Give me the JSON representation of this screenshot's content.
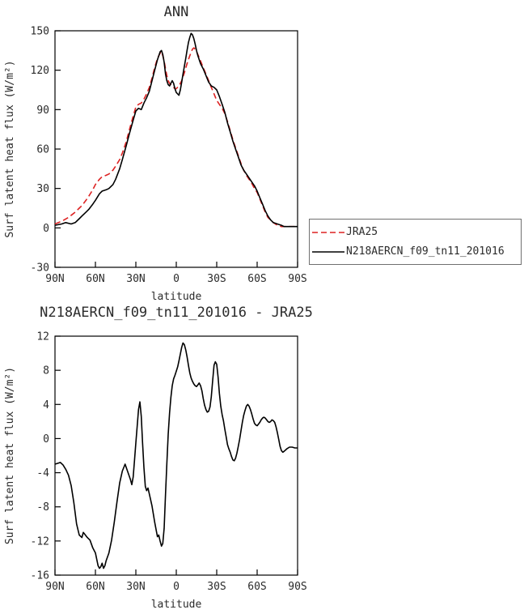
{
  "chart_data": [
    {
      "type": "line",
      "title": "ANN",
      "xlabel": "latitude",
      "ylabel": "Surf latent heat flux (W/m²)",
      "x_axis": {
        "min": 90,
        "max": -90,
        "ticks": [
          {
            "v": 90,
            "label": "90N"
          },
          {
            "v": 60,
            "label": "60N"
          },
          {
            "v": 30,
            "label": "30N"
          },
          {
            "v": 0,
            "label": "0"
          },
          {
            "v": -30,
            "label": "30S"
          },
          {
            "v": -60,
            "label": "60S"
          },
          {
            "v": -90,
            "label": "90S"
          }
        ]
      },
      "y_axis": {
        "min": -30,
        "max": 150,
        "ticks": [
          -30,
          0,
          30,
          60,
          90,
          120,
          150
        ]
      },
      "legend_position": "outside-right-bottom",
      "grid": false,
      "series": [
        {
          "name": "JRA25",
          "color": "#dd2222",
          "dash": "7,4",
          "width": 1.6,
          "x": [
            90,
            85,
            80,
            75,
            72,
            70,
            67,
            65,
            62,
            60,
            57,
            55,
            52,
            50,
            47,
            45,
            42,
            40,
            37,
            35,
            32,
            30,
            28,
            26,
            24,
            22,
            20,
            18,
            16,
            14,
            12,
            11,
            10,
            9,
            8,
            7,
            6,
            5,
            4,
            3,
            2,
            1,
            0,
            -2,
            -4,
            -6,
            -8,
            -10,
            -12,
            -13,
            -14,
            -16,
            -18,
            -20,
            -22,
            -24,
            -26,
            -28,
            -30,
            -32,
            -34,
            -36,
            -38,
            -40,
            -42,
            -44,
            -46,
            -48,
            -50,
            -52,
            -54,
            -56,
            -58,
            -60,
            -62,
            -64,
            -66,
            -68,
            -70,
            -72,
            -75,
            -78,
            -80,
            -85,
            -90
          ],
          "y": [
            3,
            5,
            8,
            12,
            15,
            17,
            21,
            24,
            29,
            33,
            37,
            39,
            40,
            41,
            44,
            47,
            52,
            57,
            66,
            74,
            85,
            92,
            94,
            95,
            98,
            102,
            107,
            114,
            122,
            129,
            133,
            134,
            131,
            127,
            121,
            116,
            112,
            110,
            109,
            108,
            107,
            106,
            106,
            108,
            112,
            118,
            125,
            131,
            136,
            137,
            136,
            132,
            127,
            122,
            117,
            112,
            107,
            102,
            97,
            94,
            91,
            87,
            81,
            74,
            67,
            61,
            55,
            49,
            44,
            40,
            37,
            34,
            30,
            27,
            22,
            17,
            12,
            8,
            6,
            4,
            2,
            1,
            1,
            1,
            1
          ]
        },
        {
          "name": "N218AERCN_f09_tn11_201016",
          "color": "#000000",
          "dash": "",
          "width": 1.6,
          "x": [
            90,
            85,
            82,
            78,
            75,
            72,
            70,
            67,
            65,
            62,
            60,
            57,
            55,
            52,
            50,
            47,
            45,
            42,
            40,
            37,
            35,
            32,
            30,
            28,
            26,
            24,
            22,
            20,
            18,
            16,
            14,
            12,
            11,
            10,
            9,
            8,
            7,
            6,
            5,
            4,
            3,
            2,
            1,
            0,
            -1,
            -2,
            -3,
            -4,
            -5,
            -6,
            -7,
            -8,
            -9,
            -10,
            -11,
            -12,
            -13,
            -14,
            -15,
            -16,
            -18,
            -20,
            -22,
            -24,
            -26,
            -28,
            -30,
            -32,
            -34,
            -36,
            -38,
            -40,
            -42,
            -44,
            -46,
            -48,
            -50,
            -52,
            -54,
            -56,
            -58,
            -60,
            -62,
            -64,
            -66,
            -68,
            -70,
            -72,
            -75,
            -78,
            -80,
            -85,
            -90
          ],
          "y": [
            2,
            3,
            4,
            3,
            4,
            7,
            9,
            12,
            14,
            18,
            21,
            26,
            28,
            29,
            30,
            33,
            37,
            45,
            52,
            63,
            71,
            82,
            89,
            91,
            90,
            95,
            99,
            104,
            112,
            120,
            128,
            134,
            135,
            132,
            126,
            117,
            112,
            109,
            108,
            110,
            112,
            110,
            106,
            103,
            102,
            101,
            105,
            111,
            117,
            123,
            129,
            135,
            141,
            145,
            148,
            147,
            144,
            140,
            135,
            131,
            125,
            121,
            116,
            111,
            108,
            107,
            105,
            100,
            94,
            88,
            80,
            73,
            66,
            60,
            54,
            48,
            44,
            41,
            38,
            35,
            32,
            28,
            23,
            18,
            13,
            9,
            6,
            4,
            3,
            2,
            1,
            1,
            1
          ]
        }
      ]
    },
    {
      "type": "line",
      "title": "N218AERCN_f09_tn11_201016 - JRA25",
      "xlabel": "latitude",
      "ylabel": "Surf latent heat flux (W/m²)",
      "x_axis": {
        "min": 90,
        "max": -90,
        "ticks": [
          {
            "v": 90,
            "label": "90N"
          },
          {
            "v": 60,
            "label": "60N"
          },
          {
            "v": 30,
            "label": "30N"
          },
          {
            "v": 0,
            "label": "0"
          },
          {
            "v": -30,
            "label": "30S"
          },
          {
            "v": -60,
            "label": "60S"
          },
          {
            "v": -90,
            "label": "90S"
          }
        ]
      },
      "y_axis": {
        "min": -16,
        "max": 12,
        "ticks": [
          -16,
          -12,
          -8,
          -4,
          0,
          4,
          8,
          12
        ]
      },
      "grid": false,
      "series": [
        {
          "name": "N218AERCN_f09_tn11_201016 - JRA25",
          "color": "#000000",
          "dash": "",
          "width": 1.6,
          "x": [
            90,
            88,
            86,
            84,
            82,
            80,
            78,
            76,
            74,
            72,
            70,
            69,
            68,
            66,
            64,
            62,
            60,
            58,
            57,
            56,
            55,
            54,
            53,
            52,
            50,
            48,
            46,
            44,
            42,
            40,
            38,
            36,
            34,
            33,
            32,
            31,
            30,
            29,
            28,
            27,
            26,
            25,
            24,
            23,
            22,
            21,
            20,
            18,
            16,
            14,
            13,
            12,
            11,
            10,
            9,
            8,
            7,
            6,
            5,
            4,
            3,
            2,
            1,
            0,
            -1,
            -2,
            -3,
            -4,
            -5,
            -6,
            -7,
            -8,
            -9,
            -10,
            -11,
            -12,
            -13,
            -14,
            -15,
            -16,
            -17,
            -18,
            -19,
            -20,
            -21,
            -22,
            -23,
            -24,
            -25,
            -26,
            -27,
            -28,
            -29,
            -30,
            -31,
            -32,
            -33,
            -34,
            -35,
            -36,
            -37,
            -38,
            -39,
            -40,
            -41,
            -42,
            -43,
            -44,
            -45,
            -46,
            -47,
            -48,
            -49,
            -50,
            -51,
            -52,
            -53,
            -54,
            -55,
            -56,
            -57,
            -58,
            -59,
            -60,
            -61,
            -62,
            -63,
            -64,
            -65,
            -66,
            -67,
            -68,
            -69,
            -70,
            -71,
            -72,
            -73,
            -74,
            -75,
            -76,
            -77,
            -78,
            -79,
            -80,
            -82,
            -84,
            -86,
            -88,
            -90
          ],
          "y": [
            -3,
            -2.9,
            -2.8,
            -3.1,
            -3.6,
            -4.3,
            -5.5,
            -7.5,
            -10,
            -11.3,
            -11.6,
            -11,
            -11.2,
            -11.6,
            -11.9,
            -12.8,
            -13.4,
            -14.9,
            -15.2,
            -15,
            -14.6,
            -15.2,
            -14.9,
            -14.3,
            -13.4,
            -11.9,
            -9.8,
            -7.4,
            -5.2,
            -3.8,
            -3,
            -3.9,
            -4.8,
            -5.4,
            -4.5,
            -2.6,
            -0.5,
            1.5,
            3.4,
            4.3,
            2.6,
            -0.5,
            -3.4,
            -5.6,
            -6.1,
            -5.8,
            -6.5,
            -7.9,
            -9.8,
            -11.5,
            -11.3,
            -12,
            -12.6,
            -12.3,
            -10.5,
            -6.5,
            -3,
            0.5,
            3,
            4.8,
            6.2,
            7,
            7.4,
            7.9,
            8.4,
            9.1,
            9.9,
            10.7,
            11.2,
            11,
            10.4,
            9.6,
            8.6,
            7.7,
            7.1,
            6.7,
            6.4,
            6.2,
            6.1,
            6.3,
            6.5,
            6.2,
            5.6,
            4.7,
            3.9,
            3.4,
            3.1,
            3.2,
            3.7,
            4.9,
            6.8,
            8.6,
            9,
            8.7,
            7.2,
            5.3,
            3.8,
            2.8,
            2.1,
            1.1,
            0.2,
            -0.7,
            -1.2,
            -1.6,
            -2.1,
            -2.5,
            -2.6,
            -2.3,
            -1.7,
            -0.9,
            -0.1,
            0.9,
            1.9,
            2.7,
            3.3,
            3.8,
            4,
            3.8,
            3.4,
            2.9,
            2.3,
            1.8,
            1.6,
            1.5,
            1.7,
            1.9,
            2.2,
            2.4,
            2.5,
            2.4,
            2.2,
            2,
            1.9,
            2,
            2.2,
            2.1,
            1.9,
            1.4,
            0.7,
            -0.1,
            -0.9,
            -1.4,
            -1.6,
            -1.5,
            -1.2,
            -1,
            -1,
            -1.1,
            -1.1
          ]
        }
      ]
    }
  ],
  "legend": {
    "items": [
      {
        "label": "JRA25"
      },
      {
        "label": "N218AERCN_f09_tn11_201016"
      }
    ]
  }
}
